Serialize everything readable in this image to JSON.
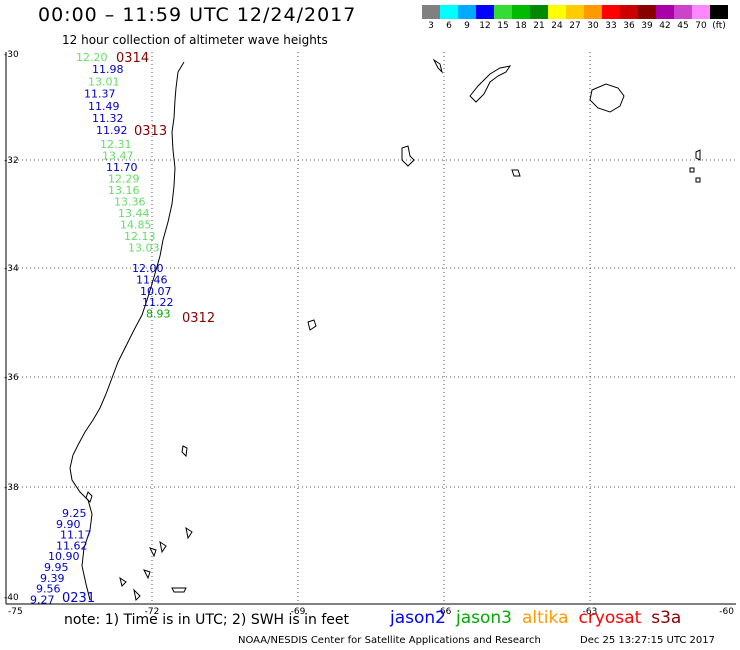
{
  "header": {
    "title": "00:00 – 11:59 UTC 12/24/2017",
    "subtitle": "12 hour collection of altimeter wave heights"
  },
  "legend": {
    "colors": [
      "#808080",
      "#00ffff",
      "#00aaff",
      "#0000ff",
      "#33dd33",
      "#00bb00",
      "#008800",
      "#ffff00",
      "#ffcc00",
      "#ff9900",
      "#ff0000",
      "#cc0000",
      "#880000",
      "#aa00aa",
      "#cc44cc",
      "#ff88ff",
      "#000000"
    ],
    "labels": [
      "3",
      "6",
      "9",
      "12",
      "15",
      "18",
      "21",
      "24",
      "27",
      "30",
      "33",
      "36",
      "39",
      "42",
      "45",
      "70",
      "(ft)"
    ]
  },
  "axes": {
    "lat_labels": [
      "-30",
      "-32",
      "-34",
      "-36",
      "-38",
      "-40"
    ],
    "lon_labels": [
      "-75",
      "-72",
      "-69",
      "-66",
      "-63",
      "-60"
    ]
  },
  "tracks": [
    {
      "label": "0314",
      "label_color": "#880000",
      "readings": [
        {
          "text": "12.20",
          "color": "#66dd66"
        },
        {
          "text": "11.98",
          "color": "#0000cc"
        },
        {
          "text": "13.01",
          "color": "#66dd66"
        },
        {
          "text": "11.37",
          "color": "#0000cc"
        },
        {
          "text": "11.49",
          "color": "#0000cc"
        },
        {
          "text": "11.32",
          "color": "#0000cc"
        },
        {
          "text": "11.92",
          "color": "#0000cc"
        }
      ]
    },
    {
      "label": "0313",
      "label_color": "#880000",
      "readings": [
        {
          "text": "12.31",
          "color": "#66dd66"
        },
        {
          "text": "13.47",
          "color": "#66dd66"
        },
        {
          "text": "11.70",
          "color": "#0000cc"
        },
        {
          "text": "12.29",
          "color": "#66dd66"
        },
        {
          "text": "13.16",
          "color": "#66dd66"
        },
        {
          "text": "13.36",
          "color": "#66dd66"
        },
        {
          "text": "13.44",
          "color": "#66dd66"
        },
        {
          "text": "14.85",
          "color": "#66dd66"
        },
        {
          "text": "12.13",
          "color": "#66dd66"
        },
        {
          "text": "13.03",
          "color": "#66dd66"
        }
      ]
    },
    {
      "label": "0312",
      "label_color": "#880000",
      "readings": [
        {
          "text": "12.00",
          "color": "#0000cc"
        },
        {
          "text": "11.46",
          "color": "#0000cc"
        },
        {
          "text": "10.07",
          "color": "#0000cc"
        },
        {
          "text": "11.22",
          "color": "#0000cc"
        },
        {
          "text": "8.93",
          "color": "#00aa00"
        }
      ]
    },
    {
      "label": "0231",
      "label_color": "#0000cc",
      "readings": [
        {
          "text": "9.25",
          "color": "#0000cc"
        },
        {
          "text": "9.90",
          "color": "#0000cc"
        },
        {
          "text": "11.17",
          "color": "#0000cc"
        },
        {
          "text": "11.62",
          "color": "#0000cc"
        },
        {
          "text": "10.90",
          "color": "#0000cc"
        },
        {
          "text": "9.95",
          "color": "#0000cc"
        },
        {
          "text": "9.39",
          "color": "#0000cc"
        },
        {
          "text": "9.56",
          "color": "#0000cc"
        },
        {
          "text": "9.27",
          "color": "#0000cc"
        }
      ]
    }
  ],
  "footer": {
    "note": "note: 1) Time is in UTC; 2) SWH is in feet",
    "missions": [
      {
        "name": "jason2",
        "color": "#0000ff"
      },
      {
        "name": "jason3",
        "color": "#00aa00"
      },
      {
        "name": "altika",
        "color": "#ff9900"
      },
      {
        "name": "cryosat",
        "color": "#ff0000"
      },
      {
        "name": "s3a",
        "color": "#880000"
      }
    ],
    "credit_left": "NOAA/NESDIS Center for Satellite Applications and Research",
    "credit_right": "Dec 25 13:27:15 UTC 2017"
  }
}
